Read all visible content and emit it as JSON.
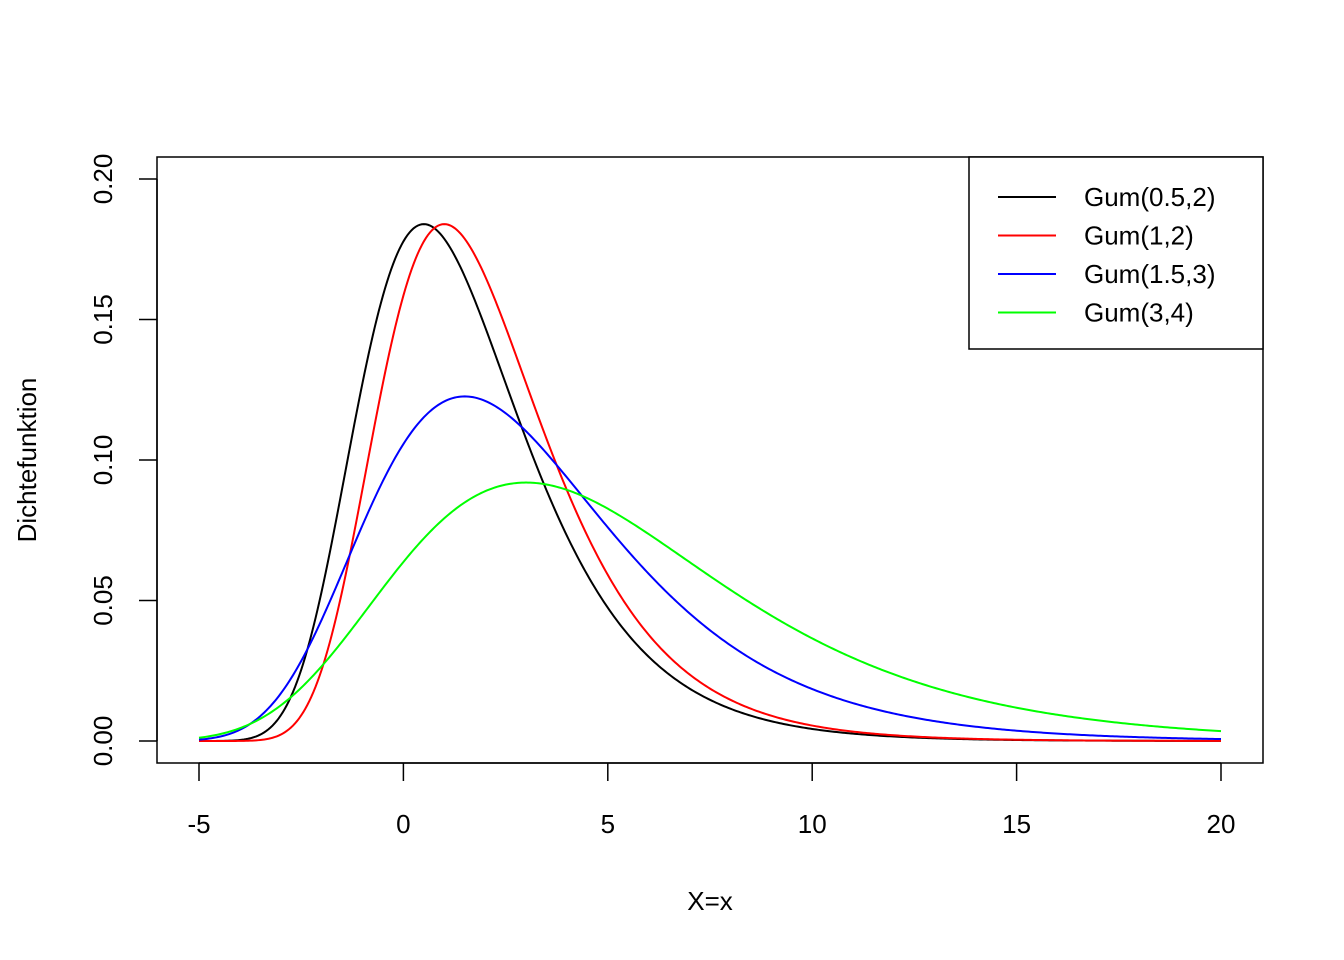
{
  "chart_data": {
    "type": "line",
    "xlabel": "X=x",
    "ylabel": "Dichtefunktion",
    "xlim": [
      -5,
      20
    ],
    "ylim": [
      0,
      0.2
    ],
    "xticks": [
      -5,
      0,
      5,
      10,
      15,
      20
    ],
    "xtick_labels": [
      "-5",
      "0",
      "5",
      "10",
      "15",
      "20"
    ],
    "yticks": [
      0,
      0.05,
      0.1,
      0.15,
      0.2
    ],
    "ytick_labels": [
      "0.00",
      "0.05",
      "0.10",
      "0.15",
      "0.20"
    ],
    "grid": false,
    "legend_position": "top-right",
    "series": [
      {
        "name": "Gum(0.5,2)",
        "mu": 0.5,
        "beta": 2,
        "color": "#000000"
      },
      {
        "name": "Gum(1,2)",
        "mu": 1,
        "beta": 2,
        "color": "#ff0000"
      },
      {
        "name": "Gum(1.5,3)",
        "mu": 1.5,
        "beta": 3,
        "color": "#0000ff"
      },
      {
        "name": "Gum(3,4)",
        "mu": 3,
        "beta": 4,
        "color": "#00ff00"
      }
    ]
  }
}
